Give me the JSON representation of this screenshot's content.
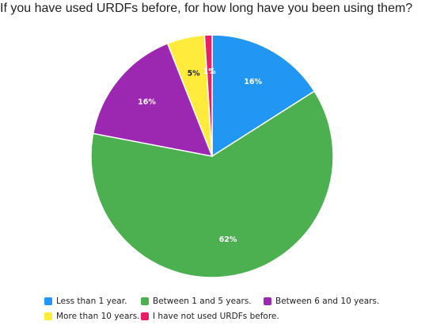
{
  "chart_data": {
    "type": "pie",
    "title": "If you have used URDFs before, for how long have you been using them?",
    "slices": [
      {
        "label": "Less than 1 year.",
        "value": 16,
        "display": "16%",
        "color": "#2196f3"
      },
      {
        "label": "Between 1 and 5 years.",
        "value": 62,
        "display": "62%",
        "color": "#4caf50"
      },
      {
        "label": "Between 6 and 10 years.",
        "value": 16,
        "display": "16%",
        "color": "#9c27b0"
      },
      {
        "label": "More than 10 years.",
        "value": 5,
        "display": "5%",
        "color": "#ffeb3b"
      },
      {
        "label": "I have not used URDFs before.",
        "value": 1,
        "display": "1%",
        "color": "#e91e63"
      }
    ],
    "legend_position": "bottom"
  }
}
